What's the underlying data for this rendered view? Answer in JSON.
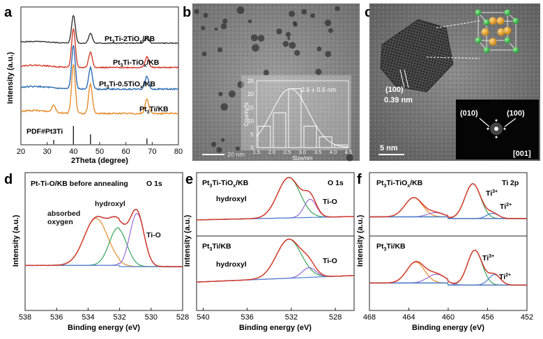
{
  "colors": {
    "red": "#d43a2a",
    "blue": "#2a6bb3",
    "dark": "#333333",
    "orange": "#e48b2a",
    "green": "#36a35a",
    "purple": "#9a6ad6",
    "baseline": "#4a7fd0",
    "gold": "#e1a93c",
    "ptgreen": "#2db84a"
  },
  "panels": {
    "a": {
      "label": "a",
      "xlabel": "2Theta (degree)",
      "ylabel": "Intensity (a.u.)",
      "curves": [
        "Pt3Ti-2TiOx/KB",
        "Pt3Ti-TiOx/KB",
        "Pt3Ti-0.5TiOx/KB",
        "Pt3Ti/KB"
      ],
      "ref": "PDF#Pt3Ti"
    },
    "b": {
      "label": "b",
      "scale": "20 nm",
      "inset_ylabel": "Counts/%",
      "inset_xlabel": "Size/nm",
      "inset_note": "2.6 ± 0.6 nm"
    },
    "c": {
      "label": "c",
      "scale": "5 nm",
      "plane": "(100)",
      "spacing": "0.39 nm",
      "fft_a": "(010)",
      "fft_b": "(100)",
      "zone": "[001]"
    },
    "d": {
      "label": "d",
      "title": "Pt-Ti-O/KB before annealing",
      "tag": "O 1s",
      "absorbed": "absorbed",
      "oxygen": "oxygen",
      "hydroxyl": "hydroxyl",
      "tio": "Ti-O",
      "xlabel": "Binding energy (eV)",
      "ylabel": "Intensity (a.u.)"
    },
    "e": {
      "label": "e",
      "top_title": "Pt3Ti-TiOx/KB",
      "top_tag": "O 1s",
      "bottom_title": "Pt3Ti/KB",
      "hydroxyl": "hydroxyl",
      "tio": "Ti-O",
      "xlabel": "Binding energy (eV)",
      "ylabel": "Intensity (a.u.)"
    },
    "f": {
      "label": "f",
      "top_title": "Pt3Ti-TiOx/KB",
      "top_tag": "Ti 2p",
      "bottom_title": "Pt3Ti/KB",
      "ti3": "Ti",
      "ti3sup": "3+",
      "ti2": "Ti",
      "ti2sup": "2+",
      "xlabel": "Binding energy (eV)",
      "ylabel": "Intensity (a.u.)"
    }
  },
  "chart_data": [
    {
      "type": "line",
      "panel": "a",
      "xlabel": "2Theta (degree)",
      "ylabel": "Intensity (a.u.)",
      "xlim": [
        20,
        80
      ],
      "xticks": [
        20,
        30,
        40,
        50,
        60,
        70,
        80
      ],
      "series": [
        {
          "name": "Pt3Ti-2TiOx/KB",
          "color": "#333333",
          "peaks": [
            [
              40,
              1.0
            ],
            [
              46.5,
              0.35
            ],
            [
              68,
              0.25
            ]
          ]
        },
        {
          "name": "Pt3Ti-TiOx/KB",
          "color": "#d43a2a",
          "peaks": [
            [
              40,
              1.0
            ],
            [
              46.5,
              0.4
            ],
            [
              68,
              0.28
            ]
          ]
        },
        {
          "name": "Pt3Ti-0.5TiOx/KB",
          "color": "#2a6bb3",
          "peaks": [
            [
              40,
              1.0
            ],
            [
              46.5,
              0.5
            ],
            [
              68,
              0.3
            ]
          ]
        },
        {
          "name": "Pt3Ti/KB",
          "color": "#e48b2a",
          "peaks": [
            [
              32.5,
              0.15
            ],
            [
              40,
              1.0
            ],
            [
              46.5,
              0.6
            ],
            [
              68,
              0.3
            ]
          ]
        }
      ],
      "reference_lines": [
        32.5,
        40,
        46.5,
        68
      ]
    },
    {
      "type": "bar",
      "panel": "b-inset",
      "xlabel": "Size/nm",
      "ylabel": "Counts/%",
      "xlim": [
        1.5,
        4.5
      ],
      "ylim": [
        0,
        25
      ],
      "xticks": [
        1.5,
        2.0,
        2.5,
        3.0,
        3.5,
        4.0,
        4.5
      ],
      "yticks": [
        0,
        5,
        10,
        15,
        20,
        25
      ],
      "categories": [
        1.75,
        2.25,
        2.75,
        3.25,
        3.75,
        4.25
      ],
      "values": [
        8,
        13,
        22,
        8,
        4,
        1
      ],
      "annotation": "2.6 ± 0.6 nm"
    },
    {
      "type": "line",
      "panel": "d",
      "xlabel": "Binding energy (eV)",
      "ylabel": "Intensity (a.u.)",
      "xlim": [
        538,
        528
      ],
      "xticks": [
        538,
        536,
        534,
        532,
        530,
        528
      ],
      "components": [
        {
          "label": "absorbed oxygen",
          "color": "#e48b2a",
          "center": 533.5,
          "height": 0.75
        },
        {
          "label": "hydroxyl",
          "color": "#36a35a",
          "center": 532.1,
          "height": 0.6
        },
        {
          "label": "Ti-O",
          "color": "#9a6ad6",
          "center": 530.9,
          "height": 0.85
        }
      ]
    },
    {
      "type": "line",
      "panel": "e",
      "xlabel": "Binding energy (eV)",
      "ylabel": "Intensity (a.u.)",
      "xlim": [
        540,
        527
      ],
      "xticks": [
        540,
        536,
        532,
        528
      ],
      "series": [
        {
          "name": "Pt3Ti-TiOx/KB",
          "components": [
            {
              "label": "hydroxyl",
              "center": 532.8,
              "height": 1.0
            },
            {
              "label": "Ti-O",
              "center": 530.9,
              "height": 0.45
            }
          ]
        },
        {
          "name": "Pt3Ti/KB",
          "components": [
            {
              "label": "hydroxyl",
              "center": 532.8,
              "height": 1.0
            },
            {
              "label": "Ti-O",
              "center": 531.0,
              "height": 0.25
            }
          ]
        }
      ]
    },
    {
      "type": "line",
      "panel": "f",
      "xlabel": "Binding energy (eV)",
      "ylabel": "Intensity (a.u.)",
      "xlim": [
        468,
        452
      ],
      "xticks": [
        468,
        464,
        460,
        456,
        452
      ],
      "series": [
        {
          "name": "Pt3Ti-TiOx/KB",
          "components": [
            {
              "label": "Ti3+",
              "center": 457.5,
              "height": 1.0
            },
            {
              "label": "Ti3+",
              "center": 463.5,
              "height": 0.55
            },
            {
              "label": "Ti2+",
              "center": 455.5,
              "height": 0.15
            },
            {
              "label": "Ti2+",
              "center": 461.3,
              "height": 0.12
            }
          ]
        },
        {
          "name": "Pt3Ti/KB",
          "components": [
            {
              "label": "Ti3+",
              "center": 457.3,
              "height": 1.0
            },
            {
              "label": "Ti3+",
              "center": 463.3,
              "height": 0.6
            },
            {
              "label": "Ti2+",
              "center": 455.3,
              "height": 0.3
            },
            {
              "label": "Ti2+",
              "center": 461.2,
              "height": 0.25
            }
          ]
        }
      ]
    }
  ]
}
